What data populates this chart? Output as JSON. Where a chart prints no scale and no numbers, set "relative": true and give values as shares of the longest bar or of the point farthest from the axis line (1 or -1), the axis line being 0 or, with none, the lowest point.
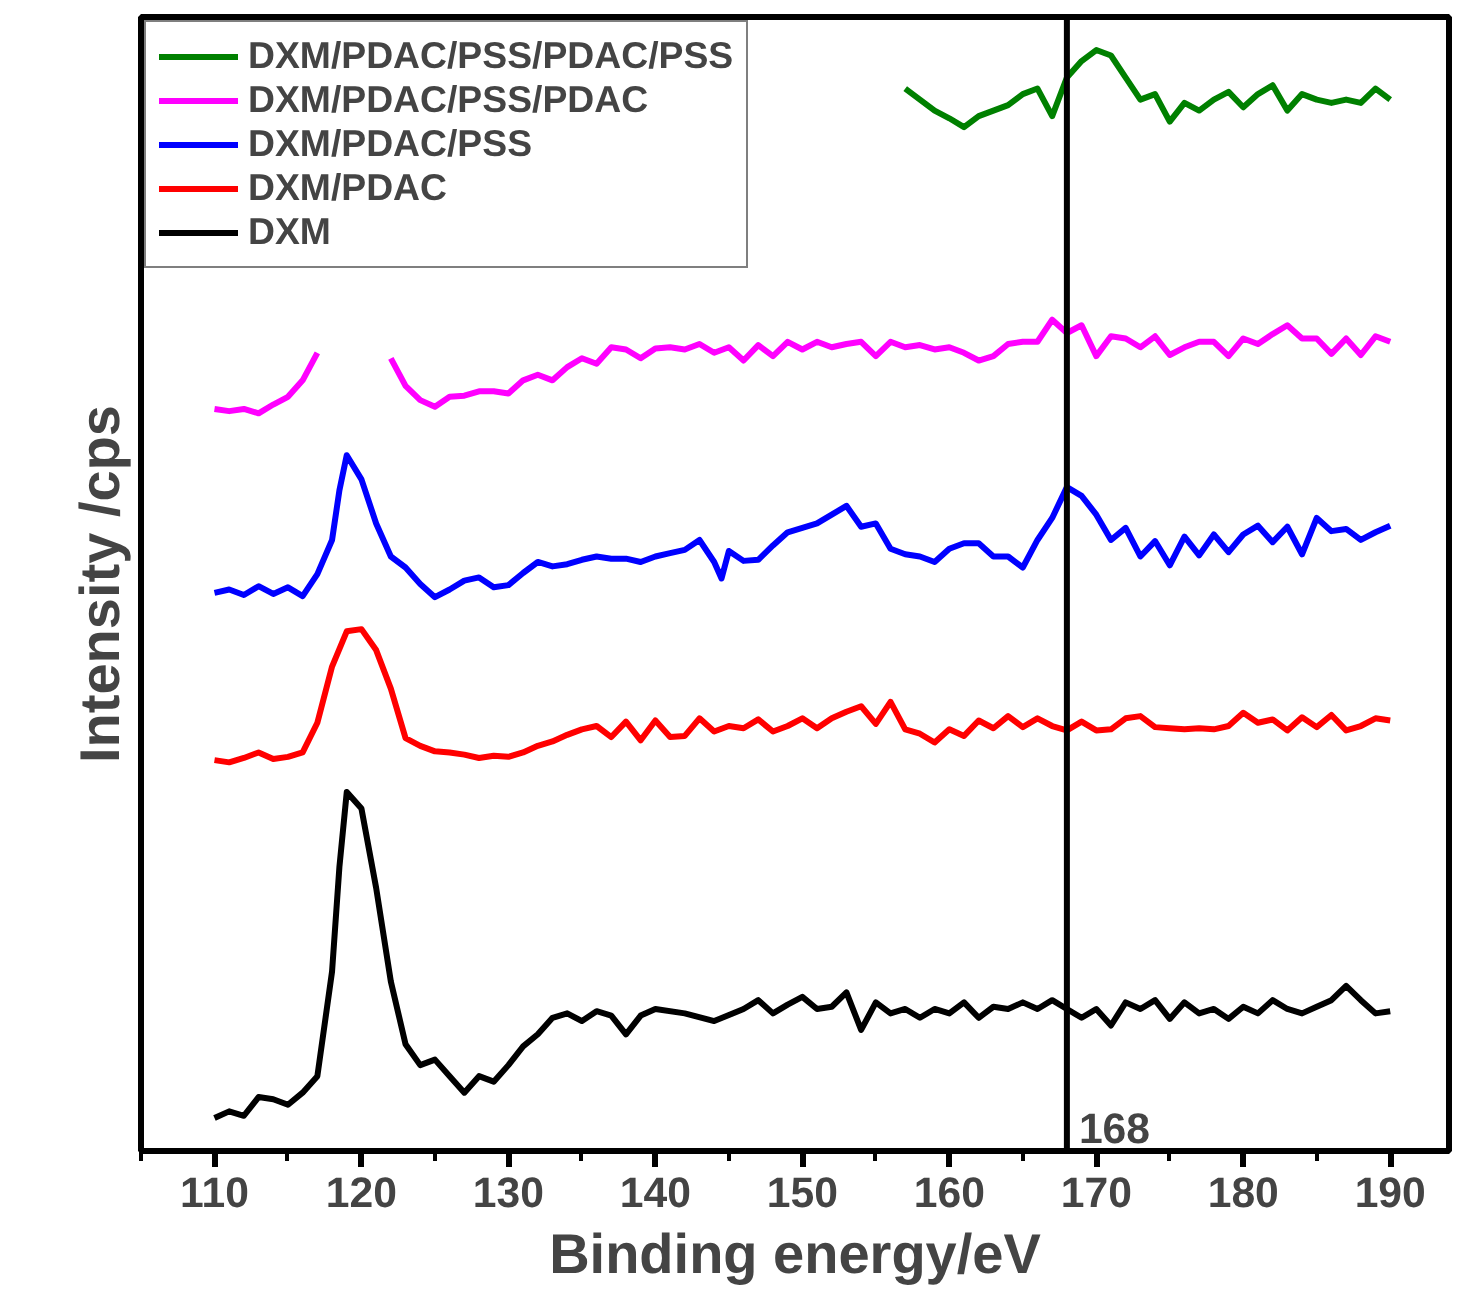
{
  "chart_data": {
    "type": "line",
    "relative": true,
    "xlabel": "Binding energy/eV",
    "ylabel": "Intensity /cps",
    "xlim": [
      105,
      194
    ],
    "xticks": [
      110,
      120,
      130,
      140,
      150,
      160,
      170,
      180,
      190
    ],
    "grid": false,
    "legend": "top left",
    "marker": "none",
    "line_style": "solid",
    "ref_lines": [
      {
        "axis": "x",
        "value": 168,
        "label": "168",
        "color": "#000000"
      }
    ],
    "series": [
      {
        "name": "DXM/PDAC/PSS/PDAC/PSS",
        "color": "#008000",
        "x": [
          157,
          158,
          159,
          160,
          161,
          162,
          163,
          164,
          165,
          166,
          167,
          168,
          169,
          170,
          171,
          172,
          173,
          174,
          175,
          176,
          177,
          178,
          179,
          180,
          181,
          182,
          183,
          184,
          185,
          186,
          187,
          188,
          189,
          190
        ],
        "values": [
          0.965,
          0.955,
          0.945,
          0.938,
          0.93,
          0.94,
          0.945,
          0.95,
          0.96,
          0.965,
          0.94,
          0.975,
          0.99,
          1.0,
          0.995,
          0.975,
          0.955,
          0.96,
          0.935,
          0.952,
          0.945,
          0.955,
          0.962,
          0.948,
          0.96,
          0.968,
          0.945,
          0.96,
          0.955,
          0.952,
          0.955,
          0.952,
          0.965,
          0.955
        ]
      },
      {
        "name": "DXM/PDAC/PSS/PDAC",
        "color": "#ff00ff",
        "x": [
          110,
          111,
          112,
          113,
          114,
          115,
          116,
          117,
          118,
          121,
          122,
          123,
          124,
          125,
          126,
          127,
          128,
          129,
          130,
          131,
          132,
          133,
          134,
          135,
          136,
          137,
          138,
          139,
          140,
          141,
          142,
          143,
          144,
          145,
          146,
          147,
          148,
          149,
          150,
          151,
          152,
          153,
          154,
          155,
          156,
          157,
          158,
          159,
          160,
          161,
          162,
          163,
          164,
          165,
          166,
          167,
          168,
          169,
          170,
          171,
          172,
          173,
          174,
          175,
          176,
          177,
          178,
          179,
          180,
          181,
          182,
          183,
          184,
          185,
          186,
          187,
          188,
          189,
          190
        ],
        "values": [
          0.674,
          0.672,
          0.674,
          0.67,
          0.678,
          0.685,
          0.7,
          0.725,
          null,
          null,
          0.72,
          0.695,
          0.682,
          0.676,
          0.685,
          0.686,
          0.69,
          0.69,
          0.688,
          0.7,
          0.705,
          0.7,
          0.712,
          0.72,
          0.715,
          0.73,
          0.728,
          0.72,
          0.729,
          0.73,
          0.728,
          0.733,
          0.725,
          0.73,
          0.718,
          0.732,
          0.722,
          0.735,
          0.728,
          0.735,
          0.73,
          0.733,
          0.735,
          0.722,
          0.735,
          0.73,
          0.732,
          0.728,
          0.73,
          0.725,
          0.718,
          0.722,
          0.733,
          0.735,
          0.735,
          0.755,
          0.743,
          0.75,
          0.722,
          0.74,
          0.738,
          0.73,
          0.74,
          0.723,
          0.73,
          0.735,
          0.735,
          0.722,
          0.738,
          0.733,
          0.742,
          0.75,
          0.738,
          0.738,
          0.724,
          0.738,
          0.723,
          0.74,
          0.735
        ]
      },
      {
        "name": "DXM/PDAC/PSS",
        "color": "#0000ff",
        "x": [
          110,
          111,
          112,
          113,
          114,
          115,
          116,
          117,
          118,
          118.5,
          119,
          120,
          121,
          122,
          123,
          124,
          125,
          126,
          127,
          128,
          129,
          130,
          131,
          132,
          133,
          134,
          135,
          136,
          137,
          138,
          139,
          140,
          141,
          142,
          143,
          144,
          144.5,
          145,
          146,
          147,
          148,
          149,
          150,
          151,
          152,
          153,
          154,
          155,
          156,
          157,
          158,
          159,
          160,
          161,
          162,
          163,
          164,
          165,
          166,
          167,
          168,
          169,
          170,
          171,
          172,
          173,
          174,
          175,
          176,
          177,
          178,
          179,
          180,
          181,
          182,
          183,
          184,
          185,
          186,
          187,
          188,
          189,
          190
        ],
        "values": [
          0.507,
          0.51,
          0.505,
          0.513,
          0.506,
          0.512,
          0.504,
          0.524,
          0.555,
          0.6,
          0.632,
          0.61,
          0.57,
          0.54,
          0.53,
          0.515,
          0.503,
          0.51,
          0.518,
          0.521,
          0.512,
          0.514,
          0.525,
          0.535,
          0.531,
          0.533,
          0.537,
          0.54,
          0.538,
          0.538,
          0.535,
          0.54,
          0.543,
          0.546,
          0.555,
          0.535,
          0.52,
          0.545,
          0.536,
          0.537,
          0.55,
          0.562,
          0.566,
          0.57,
          0.578,
          0.586,
          0.567,
          0.57,
          0.547,
          0.542,
          0.54,
          0.535,
          0.547,
          0.552,
          0.552,
          0.54,
          0.54,
          0.53,
          0.555,
          0.575,
          0.603,
          0.595,
          0.578,
          0.555,
          0.566,
          0.54,
          0.554,
          0.532,
          0.558,
          0.541,
          0.56,
          0.544,
          0.56,
          0.568,
          0.553,
          0.567,
          0.542,
          0.575,
          0.563,
          0.565,
          0.555,
          0.562,
          0.568
        ]
      },
      {
        "name": "DXM/PDAC",
        "color": "#ff0000",
        "x": [
          110,
          111,
          112,
          113,
          114,
          115,
          116,
          117,
          118,
          119,
          120,
          121,
          122,
          123,
          124,
          125,
          126,
          127,
          128,
          129,
          130,
          131,
          132,
          133,
          134,
          135,
          136,
          137,
          138,
          139,
          140,
          141,
          142,
          143,
          144,
          145,
          146,
          147,
          148,
          149,
          150,
          151,
          152,
          153,
          154,
          155,
          156,
          157,
          158,
          159,
          160,
          161,
          162,
          163,
          164,
          165,
          166,
          167,
          168,
          169,
          170,
          171,
          172,
          173,
          174,
          175,
          176,
          177,
          178,
          179,
          180,
          181,
          182,
          183,
          184,
          185,
          186,
          187,
          188,
          189,
          190
        ],
        "values": [
          0.355,
          0.353,
          0.357,
          0.362,
          0.356,
          0.358,
          0.362,
          0.389,
          0.44,
          0.472,
          0.474,
          0.455,
          0.42,
          0.375,
          0.368,
          0.363,
          0.362,
          0.36,
          0.357,
          0.359,
          0.358,
          0.362,
          0.368,
          0.372,
          0.378,
          0.383,
          0.386,
          0.376,
          0.39,
          0.373,
          0.391,
          0.376,
          0.377,
          0.393,
          0.381,
          0.386,
          0.384,
          0.392,
          0.381,
          0.386,
          0.393,
          0.384,
          0.393,
          0.399,
          0.404,
          0.388,
          0.408,
          0.383,
          0.379,
          0.371,
          0.383,
          0.377,
          0.391,
          0.384,
          0.395,
          0.385,
          0.393,
          0.386,
          0.382,
          0.39,
          0.382,
          0.383,
          0.393,
          0.395,
          0.385,
          0.384,
          0.383,
          0.384,
          0.383,
          0.386,
          0.398,
          0.389,
          0.392,
          0.382,
          0.394,
          0.385,
          0.396,
          0.382,
          0.386,
          0.393,
          0.391
        ]
      },
      {
        "name": "DXM",
        "color": "#000000",
        "x": [
          110,
          111,
          112,
          113,
          114,
          115,
          116,
          117,
          118,
          118.5,
          119,
          120,
          121,
          122,
          123,
          124,
          125,
          126,
          127,
          128,
          129,
          130,
          131,
          132,
          133,
          134,
          135,
          136,
          137,
          138,
          139,
          140,
          142,
          144,
          146,
          147,
          148,
          149,
          150,
          151,
          152,
          153,
          154,
          155,
          156,
          157,
          158,
          159,
          160,
          161,
          162,
          163,
          164,
          165,
          166,
          167,
          168,
          169,
          170,
          171,
          172,
          173,
          174,
          175,
          176,
          177,
          178,
          179,
          180,
          181,
          182,
          183,
          184,
          185,
          186,
          187,
          188,
          189,
          190
        ],
        "values": [
          0.03,
          0.036,
          0.032,
          0.049,
          0.047,
          0.042,
          0.053,
          0.068,
          0.163,
          0.258,
          0.326,
          0.311,
          0.239,
          0.154,
          0.097,
          0.078,
          0.083,
          0.068,
          0.053,
          0.068,
          0.063,
          0.078,
          0.095,
          0.106,
          0.121,
          0.125,
          0.118,
          0.127,
          0.123,
          0.106,
          0.123,
          0.129,
          0.125,
          0.118,
          0.129,
          0.137,
          0.125,
          0.133,
          0.14,
          0.129,
          0.131,
          0.144,
          0.11,
          0.135,
          0.125,
          0.129,
          0.121,
          0.129,
          0.125,
          0.135,
          0.121,
          0.131,
          0.129,
          0.135,
          0.129,
          0.137,
          0.129,
          0.121,
          0.129,
          0.114,
          0.135,
          0.129,
          0.137,
          0.12,
          0.135,
          0.125,
          0.129,
          0.12,
          0.131,
          0.125,
          0.137,
          0.129,
          0.125,
          0.131,
          0.137,
          0.15,
          0.137,
          0.125,
          0.127
        ]
      }
    ]
  }
}
